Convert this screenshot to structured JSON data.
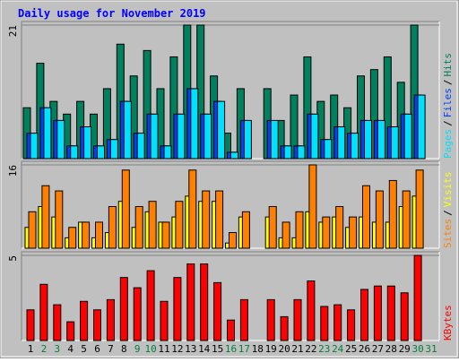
{
  "chart_data": {
    "type": "bar",
    "title": "Daily usage for November 2019",
    "categories": [
      "1",
      "2",
      "3",
      "4",
      "5",
      "6",
      "7",
      "8",
      "9",
      "10",
      "11",
      "12",
      "13",
      "14",
      "15",
      "16",
      "17",
      "18",
      "19",
      "20",
      "21",
      "22",
      "23",
      "24",
      "25",
      "26",
      "27",
      "28",
      "29",
      "30",
      "31"
    ],
    "category_colors": [
      "#000000",
      "#008040",
      "#008040",
      "#000000",
      "#000000",
      "#000000",
      "#000000",
      "#000000",
      "#008040",
      "#008040",
      "#000000",
      "#000000",
      "#000000",
      "#000000",
      "#000000",
      "#008040",
      "#008040",
      "#000000",
      "#000000",
      "#000000",
      "#000000",
      "#000000",
      "#008040",
      "#008040",
      "#000000",
      "#000000",
      "#000000",
      "#000000",
      "#000000",
      "#008040",
      "#008040"
    ],
    "legend_separator": "/",
    "panels": [
      {
        "ylim": [
          0,
          21
        ],
        "yticks": [
          21
        ],
        "series": [
          {
            "name": "Hits",
            "color": "#00805c",
            "values": [
              8,
              15,
              9,
              7,
              9,
              7,
              11,
              18,
              13,
              17,
              11,
              16,
              21,
              21,
              13,
              4,
              11,
              0,
              11,
              6,
              10,
              16,
              9,
              10,
              8,
              13,
              14,
              16,
              12,
              21,
              0
            ]
          },
          {
            "name": "Files",
            "color": "#0040ff",
            "values": [
              4,
              8,
              6,
              2,
              5,
              2,
              3,
              9,
              4,
              7,
              2,
              7,
              11,
              7,
              9,
              1,
              6,
              0,
              6,
              2,
              2,
              7,
              3,
              5,
              4,
              6,
              6,
              5,
              7,
              10,
              0
            ]
          },
          {
            "name": "Pages",
            "color": "#00e0ff",
            "values": [
              4,
              8,
              6,
              2,
              5,
              2,
              3,
              9,
              4,
              7,
              2,
              7,
              11,
              7,
              9,
              1,
              6,
              0,
              6,
              2,
              2,
              7,
              3,
              5,
              4,
              6,
              6,
              5,
              7,
              10,
              0
            ]
          }
        ]
      },
      {
        "ylim": [
          0,
          16
        ],
        "yticks": [
          16
        ],
        "series": [
          {
            "name": "Visits",
            "color": "#ffff00",
            "values": [
              4,
              8,
              6,
              2,
              5,
              2,
              3,
              9,
              4,
              7,
              5,
              6,
              10,
              9,
              9,
              1,
              6,
              0,
              6,
              2,
              2,
              7,
              5,
              6,
              4,
              6,
              5,
              5,
              8,
              10,
              0
            ]
          },
          {
            "name": "Sites",
            "color": "#ff8000",
            "values": [
              7,
              12,
              11,
              4,
              5,
              5,
              8,
              15,
              8,
              9,
              5,
              9,
              15,
              11,
              11,
              3,
              7,
              0,
              8,
              5,
              7,
              16,
              6,
              8,
              6,
              12,
              11,
              13,
              11,
              15,
              0
            ]
          }
        ]
      },
      {
        "ylim": [
          0,
          5
        ],
        "yticks": [
          5
        ],
        "series": [
          {
            "name": "KBytes",
            "color": "#ff0000",
            "values": [
              1.8,
              3.3,
              2.1,
              1.1,
              2.3,
              1.8,
              2.4,
              3.7,
              3.1,
              4.1,
              2.3,
              3.7,
              4.5,
              4.5,
              3.4,
              1.2,
              2.4,
              0,
              2.4,
              1.4,
              2.4,
              3.5,
              2.0,
              2.1,
              1.8,
              3.0,
              3.2,
              3.2,
              2.8,
              5.0,
              0
            ]
          }
        ]
      }
    ]
  }
}
